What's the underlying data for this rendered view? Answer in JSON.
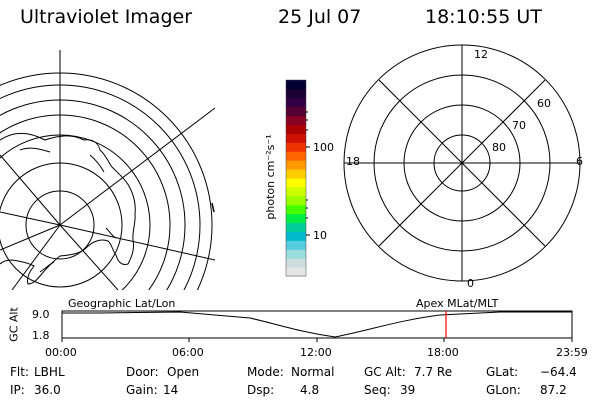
{
  "header": {
    "instrument": "Ultraviolet Imager",
    "date": "25 Jul 07",
    "time": "18:10:55 UT"
  },
  "colorbar": {
    "unit_label": "photon cm⁻²s⁻¹",
    "tick_labels": [
      "100",
      "10"
    ],
    "colors_top_to_bottom": [
      "#000033",
      "#1a0033",
      "#330044",
      "#550033",
      "#880022",
      "#aa0000",
      "#cc1100",
      "#ee3300",
      "#ff6600",
      "#ff9900",
      "#ffcc00",
      "#ffff00",
      "#ccff00",
      "#99ff00",
      "#44ff00",
      "#00ee44",
      "#00cc99",
      "#00bbcc",
      "#55ccdd",
      "#99dddd",
      "#ccdddd",
      "#e6e6e6"
    ]
  },
  "polar_plot": {
    "mlt_labels": [
      "12",
      "18",
      "6",
      "0"
    ],
    "mlat_labels": [
      "60",
      "70",
      "80"
    ]
  },
  "timeline": {
    "left_caption": "Geographic Lat/Lon",
    "right_caption": "Apex MLat/MLT",
    "y_axis_label": "GC Alt",
    "y_ticks": [
      "9.0",
      "1.8"
    ],
    "x_ticks": [
      "00:00",
      "06:00",
      "12:00",
      "18:00",
      "23:59"
    ],
    "current_time_marker": "18:10",
    "marker_color": "#ff0000"
  },
  "info": {
    "filter_label": "Flt:",
    "filter_value": "LBHL",
    "ip_label": "IP:",
    "ip_value": "36.0",
    "door_label": "Door:",
    "door_value": "Open",
    "gain_label": "Gain:",
    "gain_value": "14",
    "mode_label": "Mode:",
    "mode_value": "Normal",
    "dsp_label": "Dsp:",
    "dsp_value": "4.8",
    "gcalt_label": "GC Alt:",
    "gcalt_value": "7.7 Re",
    "seq_label": "Seq:",
    "seq_value": "39",
    "glat_label": "GLat:",
    "glat_value": "−64.4",
    "glon_label": "GLon:",
    "glon_value": "87.2"
  }
}
